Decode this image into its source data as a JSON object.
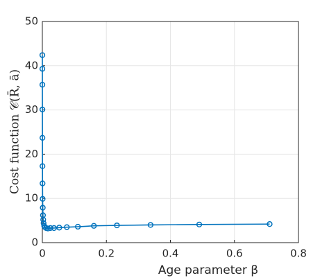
{
  "chart_data": {
    "type": "line",
    "xlabel": "Age parameter β",
    "ylabel": "Cost function 𝒞(R̄, ā)",
    "x": [
      7e-05,
      0.0001,
      0.00014,
      0.0002,
      0.0003,
      0.0004,
      0.0006,
      0.0009,
      0.0013,
      0.0019,
      0.0027,
      0.0039,
      0.0057,
      0.0082,
      0.0119,
      0.0173,
      0.0251,
      0.0364,
      0.0528,
      0.0765,
      0.111,
      0.161,
      0.233,
      0.338,
      0.49,
      0.71
    ],
    "series": [
      {
        "name": "cost",
        "color": "#0072bd",
        "values": [
          42.4,
          39.3,
          35.7,
          30.1,
          23.7,
          17.3,
          13.4,
          9.9,
          7.9,
          6.2,
          5.2,
          4.4,
          3.8,
          3.5,
          3.3,
          3.2,
          3.3,
          3.3,
          3.4,
          3.5,
          3.6,
          3.8,
          3.9,
          4.0,
          4.1,
          4.2
        ]
      }
    ],
    "xlim": [
      0,
      0.8
    ],
    "xticks": [
      0,
      0.2,
      0.4,
      0.6,
      0.8
    ],
    "ylim": [
      0,
      50
    ],
    "yticks": [
      0,
      10,
      20,
      30,
      40,
      50
    ],
    "grid": true
  }
}
